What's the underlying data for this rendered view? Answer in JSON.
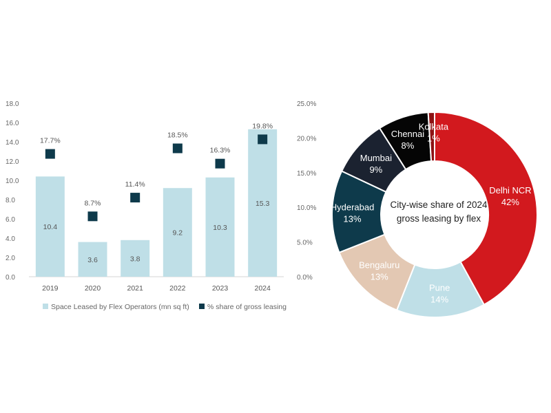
{
  "chart_data": [
    {
      "type": "bar",
      "title": "",
      "xlabel": "",
      "ylabel": "",
      "categories": [
        "2019",
        "2020",
        "2021",
        "2022",
        "2023",
        "2024"
      ],
      "ylim": [
        0,
        18
      ],
      "y_ticks": [
        "0.0",
        "2.0",
        "4.0",
        "6.0",
        "8.0",
        "10.0",
        "12.0",
        "14.0",
        "16.0",
        "18.0"
      ],
      "y2lim": [
        0,
        25
      ],
      "y2_ticks": [
        "0.0%",
        "5.0%",
        "10.0%",
        "15.0%",
        "20.0%",
        "25.0%"
      ],
      "series": [
        {
          "name": "Space Leased by Flex Operators (mn sq ft)",
          "type": "bar",
          "axis": "left",
          "color": "#bfdfe7",
          "values": [
            10.4,
            3.6,
            3.8,
            9.2,
            10.3,
            15.3
          ],
          "labels": [
            "10.4",
            "3.6",
            "3.8",
            "9.2",
            "10.3",
            "15.3"
          ]
        },
        {
          "name": "% share of gross leasing",
          "type": "scatter",
          "marker": "square",
          "axis": "right",
          "color": "#0e3a4b",
          "values": [
            17.7,
            8.7,
            11.4,
            18.5,
            16.3,
            19.8
          ],
          "labels": [
            "17.7%",
            "8.7%",
            "11.4%",
            "18.5%",
            "16.3%",
            "19.8%"
          ]
        }
      ],
      "legend": "bottom"
    },
    {
      "type": "pie",
      "variant": "donut",
      "title": "City-wise share of 2024 gross leasing by flex",
      "title_lines": [
        "City-wise share of 2024",
        "gross leasing by flex"
      ],
      "slices": [
        {
          "name": "Delhi NCR",
          "value": 42,
          "label": "42%",
          "color": "#d2191e",
          "text_color": "#ffffff"
        },
        {
          "name": "Pune",
          "value": 14,
          "label": "14%",
          "color": "#bfdfe7",
          "text_color": "#ffffff"
        },
        {
          "name": "Bengaluru",
          "value": 13,
          "label": "13%",
          "color": "#e3c8b3",
          "text_color": "#ffffff"
        },
        {
          "name": "Hyderabad",
          "value": 13,
          "label": "13%",
          "color": "#0e3a4b",
          "text_color": "#ffffff"
        },
        {
          "name": "Mumbai",
          "value": 9,
          "label": "9%",
          "color": "#1b2230",
          "text_color": "#ffffff"
        },
        {
          "name": "Chennai",
          "value": 8,
          "label": "8%",
          "color": "#050505",
          "text_color": "#ffffff"
        },
        {
          "name": "Kolkata",
          "value": 1,
          "label": "1%",
          "color": "#8e1214",
          "text_color": "#ffffff"
        }
      ]
    }
  ]
}
